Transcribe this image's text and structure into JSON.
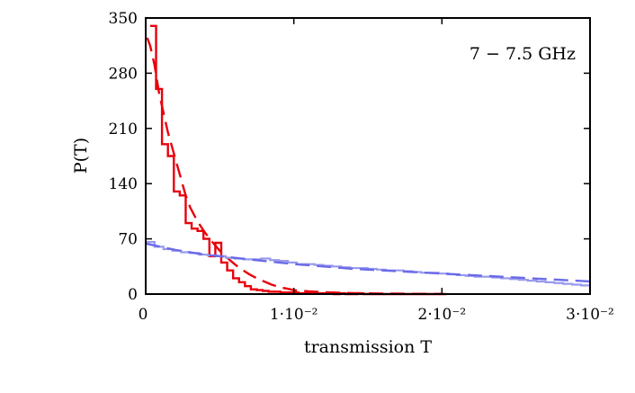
{
  "chart_data": {
    "type": "line",
    "annotation": "7 − 7.5 GHz",
    "xlabel": "transmission T",
    "ylabel": "P(T)",
    "xlim": [
      0,
      0.03
    ],
    "ylim": [
      0,
      350
    ],
    "grid": false,
    "x_ticks": [
      {
        "value": 0,
        "label": "0"
      },
      {
        "value": 0.01,
        "label": "1·10⁻²"
      },
      {
        "value": 0.02,
        "label": "2·10⁻²"
      },
      {
        "value": 0.03,
        "label": "3·10⁻²"
      }
    ],
    "y_ticks": [
      {
        "value": 0,
        "label": "0"
      },
      {
        "value": 70,
        "label": "70"
      },
      {
        "value": 140,
        "label": "140"
      },
      {
        "value": 210,
        "label": "210"
      },
      {
        "value": 280,
        "label": "280"
      },
      {
        "value": 350,
        "label": "350"
      }
    ],
    "series": [
      {
        "name": "red-histogram",
        "style": "step",
        "dash": "solid",
        "color": "#e8000b",
        "bin_width": 0.0004,
        "x_start": 0.0003,
        "values": [
          340,
          260,
          190,
          175,
          130,
          125,
          90,
          83,
          80,
          70,
          48,
          65,
          40,
          30,
          20,
          15,
          10,
          6,
          5,
          4,
          3,
          3,
          2,
          2,
          2,
          1,
          1,
          1,
          1,
          1,
          1,
          0,
          1,
          0,
          0,
          1,
          0,
          0,
          0,
          0,
          0,
          0,
          0,
          0,
          0,
          0,
          0,
          0,
          0,
          0
        ]
      },
      {
        "name": "red-model",
        "style": "line",
        "dash": "dashed",
        "color": "#e8000b",
        "points": [
          [
            0.0001,
            325
          ],
          [
            0.0003,
            315
          ],
          [
            0.0006,
            290
          ],
          [
            0.0009,
            255
          ],
          [
            0.0012,
            230
          ],
          [
            0.0015,
            205
          ],
          [
            0.0018,
            185
          ],
          [
            0.0021,
            165
          ],
          [
            0.0024,
            145
          ],
          [
            0.0027,
            125
          ],
          [
            0.003,
            110
          ],
          [
            0.0035,
            92
          ],
          [
            0.004,
            78
          ],
          [
            0.0045,
            66
          ],
          [
            0.005,
            55
          ],
          [
            0.0055,
            46
          ],
          [
            0.006,
            38
          ],
          [
            0.0065,
            31
          ],
          [
            0.007,
            25
          ],
          [
            0.0075,
            20
          ],
          [
            0.008,
            16
          ],
          [
            0.0085,
            12
          ],
          [
            0.009,
            9
          ],
          [
            0.0095,
            7
          ],
          [
            0.01,
            5
          ],
          [
            0.011,
            3.5
          ],
          [
            0.012,
            2.5
          ],
          [
            0.013,
            1.8
          ],
          [
            0.014,
            1.2
          ],
          [
            0.016,
            0.7
          ],
          [
            0.018,
            0.4
          ],
          [
            0.02,
            0.2
          ]
        ]
      },
      {
        "name": "blue-histogram",
        "style": "step",
        "dash": "solid",
        "color": "#9999ee",
        "bin_width": 0.0006,
        "x_start": 0.0,
        "values": [
          66,
          60,
          57,
          55,
          53,
          52,
          50,
          49,
          48,
          46,
          45,
          44,
          44,
          45,
          43,
          42,
          40,
          38,
          38,
          37,
          36,
          35,
          34,
          33,
          33,
          32,
          31,
          30,
          30,
          29,
          28,
          27,
          27,
          26,
          25,
          24,
          23,
          22,
          22,
          21,
          20,
          19,
          18,
          17,
          16,
          15,
          14,
          13,
          12,
          11
        ]
      },
      {
        "name": "blue-model",
        "style": "line",
        "dash": "dashed",
        "color": "#6a6ae8",
        "points": [
          [
            0,
            64
          ],
          [
            0.001,
            60
          ],
          [
            0.002,
            56
          ],
          [
            0.003,
            53
          ],
          [
            0.004,
            50
          ],
          [
            0.005,
            48
          ],
          [
            0.006,
            46
          ],
          [
            0.007,
            44
          ],
          [
            0.008,
            42
          ],
          [
            0.009,
            40
          ],
          [
            0.01,
            38
          ],
          [
            0.011,
            36.5
          ],
          [
            0.012,
            35
          ],
          [
            0.013,
            33.5
          ],
          [
            0.014,
            32
          ],
          [
            0.015,
            31
          ],
          [
            0.016,
            30
          ],
          [
            0.017,
            29
          ],
          [
            0.018,
            28
          ],
          [
            0.019,
            27
          ],
          [
            0.02,
            26
          ],
          [
            0.021,
            25
          ],
          [
            0.022,
            24
          ],
          [
            0.023,
            23
          ],
          [
            0.024,
            22
          ],
          [
            0.025,
            21
          ],
          [
            0.026,
            20
          ],
          [
            0.027,
            19
          ],
          [
            0.028,
            18
          ],
          [
            0.029,
            17
          ],
          [
            0.03,
            16
          ]
        ]
      }
    ]
  }
}
